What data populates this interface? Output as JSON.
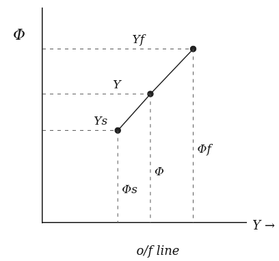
{
  "chart_data": {
    "type": "line",
    "title": "o/f line",
    "x_label": "Y →",
    "y_label": "Φ",
    "x": [
      3.7,
      5.3,
      7.4
    ],
    "values": [
      4.3,
      6.0,
      8.1
    ],
    "x_point_labels": [
      "Φs",
      "Φ",
      "Φf"
    ],
    "y_point_labels": [
      "Ys",
      "Y",
      "Yf"
    ],
    "xlim": [
      0,
      10
    ],
    "ylim": [
      0,
      10
    ],
    "color": "#222222",
    "marker": "circle",
    "line_style": "solid",
    "grid": false,
    "tick_labels": false
  }
}
